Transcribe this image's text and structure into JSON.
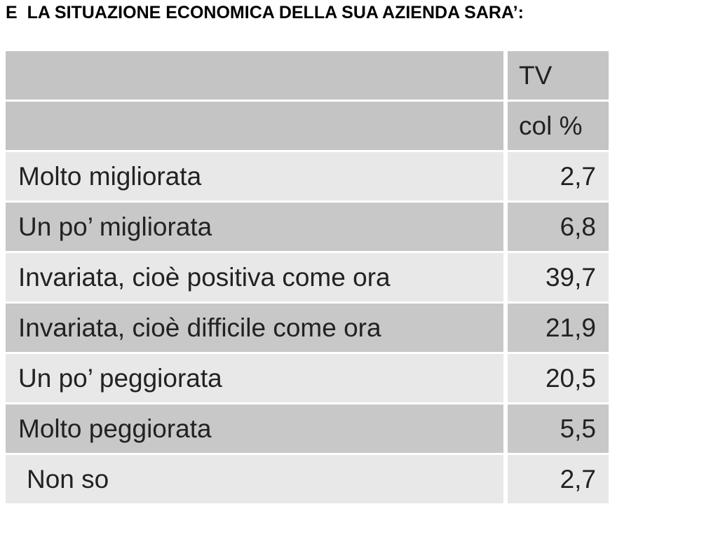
{
  "header": {
    "title": "E  LA SITUAZIONE ECONOMICA DELLA SUA AZIENDA SARA’:"
  },
  "table": {
    "columns": [
      "TV",
      "col %"
    ],
    "rows": [
      [
        "Molto migliorata",
        "2,7"
      ],
      [
        "Un po’ migliorata",
        "6,8"
      ],
      [
        "Invariata, cioè positiva come ora",
        "39,7"
      ],
      [
        "Invariata, cioè difficile come ora",
        "21,9"
      ],
      [
        "Un po’ peggiorata",
        "20,5"
      ],
      [
        "Molto peggiorata",
        "5,5"
      ],
      [
        "Non so",
        "2,7"
      ]
    ]
  }
}
